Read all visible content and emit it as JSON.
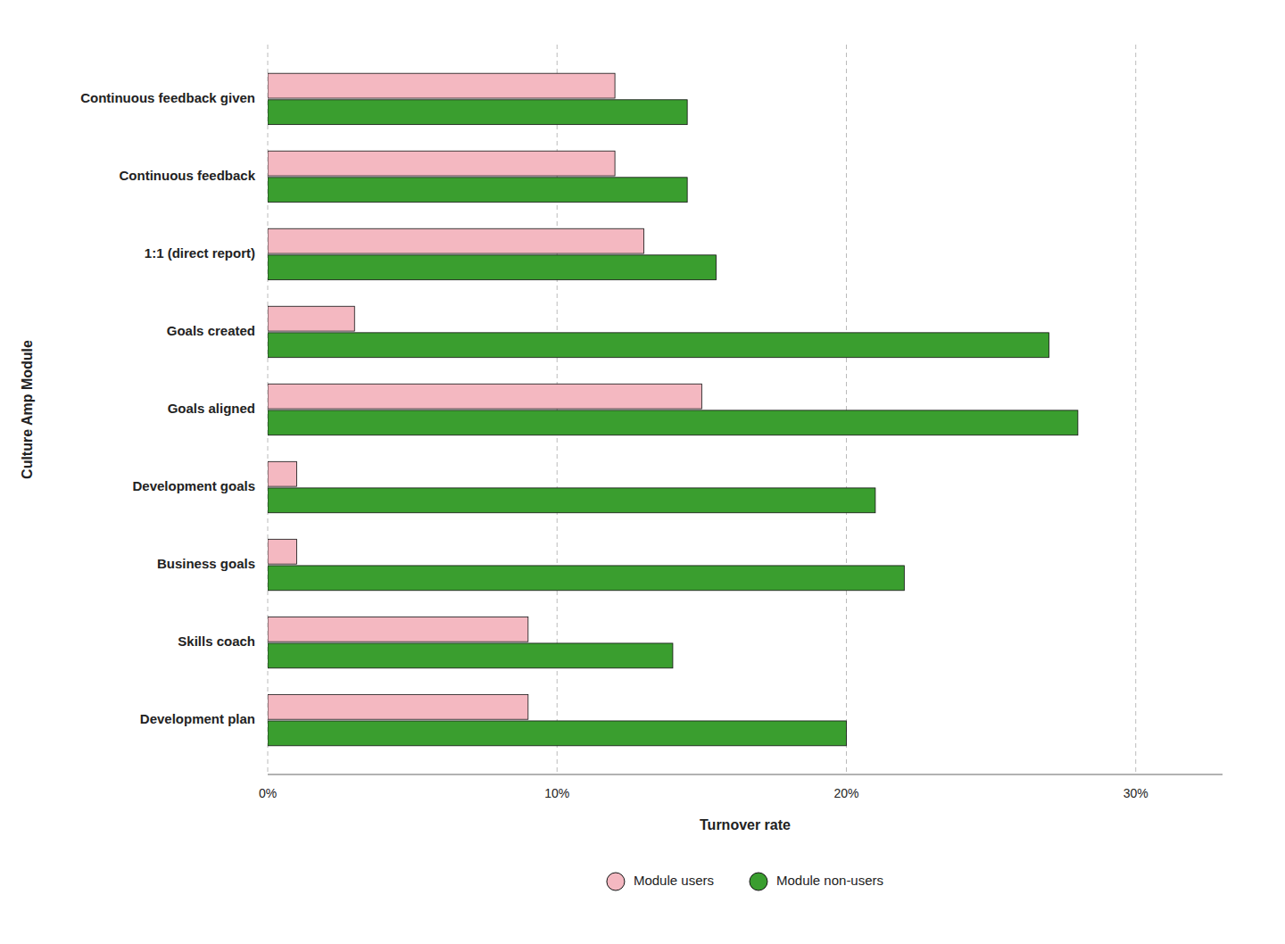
{
  "chart_data": {
    "type": "bar",
    "orientation": "horizontal",
    "categories": [
      "Development plan",
      "Skills coach",
      "Business goals",
      "Development goals",
      "Goals aligned",
      "Goals created",
      "1:1 (direct report)",
      "Continuous feedback",
      "Continuous feedback given"
    ],
    "series": [
      {
        "name": "Module users",
        "color": "#f4b8c1",
        "values": [
          9.0,
          9.0,
          1.0,
          1.0,
          15.0,
          3.0,
          13.0,
          12.0,
          12.0
        ]
      },
      {
        "name": "Module non-users",
        "color": "#3a9e2f",
        "values": [
          20.0,
          14.0,
          22.0,
          21.0,
          28.0,
          27.0,
          15.5,
          14.5,
          14.5
        ]
      }
    ],
    "xlabel": "Turnover rate",
    "ylabel": "Culture Amp Module",
    "xlim": [
      0,
      33
    ],
    "xticks": [
      {
        "value": 0,
        "label": "0%"
      },
      {
        "value": 10,
        "label": "10%"
      },
      {
        "value": 20,
        "label": "20%"
      },
      {
        "value": 30,
        "label": "30%"
      }
    ],
    "grid": true,
    "legend": "bottom"
  }
}
